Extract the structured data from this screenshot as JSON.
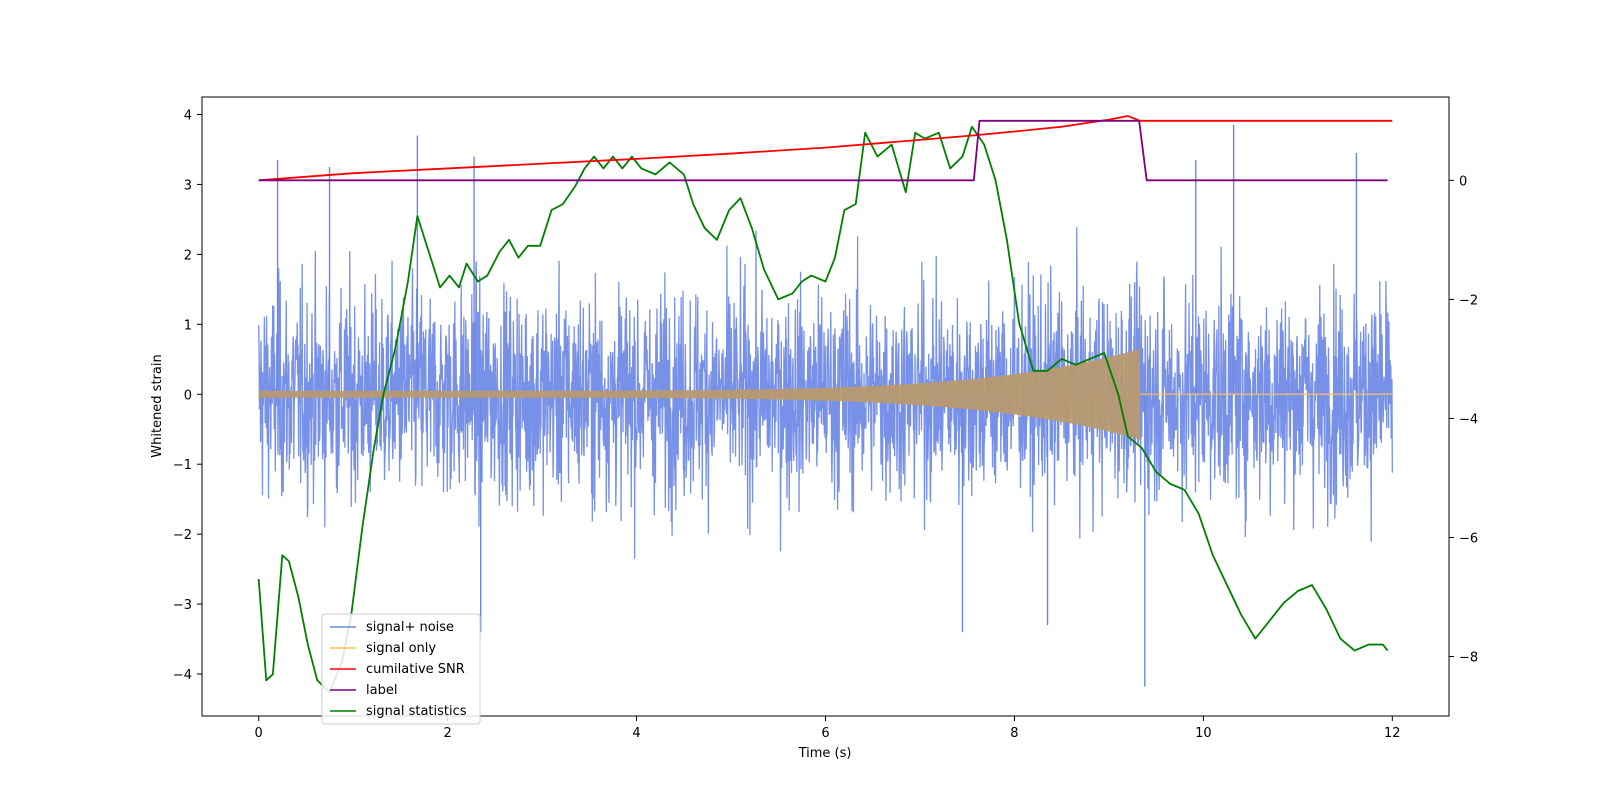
{
  "chart_data": {
    "type": "line",
    "xlabel": "Time (s)",
    "ylabel": "Whitened strain",
    "ylabel_right": "",
    "xlim": [
      -0.6,
      12.6
    ],
    "ylim": [
      -4.6,
      4.25
    ],
    "ylim_right": [
      -9.0,
      1.4
    ],
    "x_ticks": [
      0,
      2,
      4,
      6,
      8,
      10,
      12
    ],
    "y_ticks": [
      4,
      3,
      2,
      1,
      0,
      -1,
      -2,
      -3,
      -4
    ],
    "y_ticks_right": [
      0,
      -2,
      -4,
      -6,
      -8
    ],
    "x_tick_labels": [
      "0",
      "2",
      "4",
      "6",
      "8",
      "10",
      "12"
    ],
    "y_tick_labels": [
      "4",
      "3",
      "2",
      "1",
      "0",
      "−1",
      "−2",
      "−3",
      "−4"
    ],
    "y_tick_labels_right": [
      "0",
      "−2",
      "−4",
      "−6",
      "−8"
    ],
    "grid": false,
    "legend_position": "lower-left",
    "colors": {
      "noise": "#6b87e6",
      "signal": "#ffc04d",
      "snr": "#ff0000",
      "label": "#800080",
      "stats": "#008000"
    },
    "series": [
      {
        "name": "signal+ noise",
        "axis": "left",
        "description_values": "whitened noise, roughly uniform band with peaks near ±2.5 and spikes",
        "t_start": 0,
        "t_end": 12,
        "band_lower": -2.3,
        "band_upper": 2.3,
        "spikes": [
          {
            "x": 0.2,
            "y": 3.35
          },
          {
            "x": 0.75,
            "y": 3.25
          },
          {
            "x": 1.68,
            "y": 3.7
          },
          {
            "x": 2.28,
            "y": 3.4
          },
          {
            "x": 9.38,
            "y": -4.18
          },
          {
            "x": 9.92,
            "y": 3.35
          },
          {
            "x": 10.32,
            "y": 3.85
          },
          {
            "x": 11.62,
            "y": 3.45
          },
          {
            "x": 2.35,
            "y": -3.4
          },
          {
            "x": 7.45,
            "y": -3.4
          },
          {
            "x": 8.35,
            "y": -3.3
          }
        ]
      },
      {
        "name": "signal only",
        "axis": "left",
        "t_start": 0,
        "t_merger": 9.33,
        "amp_start": 0.05,
        "amp_peak": 0.65,
        "post_merger_value": 0.0
      },
      {
        "name": "cumilative SNR",
        "axis": "right",
        "x": [
          0,
          1,
          2,
          3,
          4,
          5,
          6,
          7,
          7.6,
          8,
          8.5,
          9,
          9.2,
          9.33,
          10,
          11,
          12
        ],
        "values": [
          0.0,
          0.12,
          0.2,
          0.28,
          0.36,
          0.45,
          0.55,
          0.68,
          0.76,
          0.82,
          0.9,
          1.02,
          1.08,
          1.0,
          1.0,
          1.0,
          1.0
        ]
      },
      {
        "name": "label",
        "axis": "right",
        "x": [
          0,
          7.57,
          7.63,
          9.32,
          9.4,
          11.95
        ],
        "values": [
          0,
          0,
          1,
          1,
          0,
          0
        ]
      },
      {
        "name": "signal statistics",
        "axis": "right",
        "x": [
          0.0,
          0.08,
          0.15,
          0.25,
          0.32,
          0.42,
          0.52,
          0.62,
          0.75,
          0.88,
          0.98,
          1.1,
          1.22,
          1.32,
          1.45,
          1.58,
          1.68,
          1.8,
          1.92,
          2.02,
          2.12,
          2.2,
          2.32,
          2.42,
          2.55,
          2.65,
          2.75,
          2.85,
          2.98,
          3.1,
          3.22,
          3.35,
          3.45,
          3.55,
          3.65,
          3.75,
          3.85,
          3.95,
          4.05,
          4.2,
          4.35,
          4.5,
          4.6,
          4.72,
          4.85,
          4.98,
          5.1,
          5.22,
          5.35,
          5.5,
          5.65,
          5.75,
          5.85,
          6.0,
          6.1,
          6.2,
          6.32,
          6.42,
          6.55,
          6.7,
          6.85,
          6.95,
          7.05,
          7.2,
          7.32,
          7.45,
          7.55,
          7.68,
          7.8,
          7.92,
          8.05,
          8.2,
          8.35,
          8.5,
          8.65,
          8.8,
          8.95,
          9.1,
          9.2,
          9.35,
          9.5,
          9.65,
          9.8,
          9.95,
          10.1,
          10.25,
          10.4,
          10.55,
          10.7,
          10.85,
          11.0,
          11.15,
          11.3,
          11.45,
          11.6,
          11.75,
          11.9,
          11.95
        ],
        "values": [
          -6.7,
          -8.4,
          -8.3,
          -6.3,
          -6.4,
          -7.0,
          -7.8,
          -8.4,
          -8.6,
          -8.1,
          -7.3,
          -5.8,
          -4.5,
          -3.6,
          -2.8,
          -1.7,
          -0.6,
          -1.2,
          -1.8,
          -1.6,
          -1.8,
          -1.4,
          -1.7,
          -1.6,
          -1.2,
          -1.0,
          -1.3,
          -1.1,
          -1.1,
          -0.5,
          -0.4,
          -0.1,
          0.2,
          0.4,
          0.2,
          0.4,
          0.2,
          0.4,
          0.2,
          0.1,
          0.3,
          0.1,
          -0.4,
          -0.8,
          -1.0,
          -0.5,
          -0.3,
          -0.8,
          -1.5,
          -2.0,
          -1.9,
          -1.7,
          -1.6,
          -1.7,
          -1.3,
          -0.5,
          -0.4,
          0.8,
          0.4,
          0.6,
          -0.2,
          0.8,
          0.7,
          0.8,
          0.2,
          0.4,
          0.9,
          0.6,
          0.0,
          -1.0,
          -2.4,
          -3.2,
          -3.2,
          -3.0,
          -3.1,
          -3.0,
          -2.9,
          -3.6,
          -4.3,
          -4.5,
          -4.9,
          -5.1,
          -5.2,
          -5.6,
          -6.3,
          -6.8,
          -7.3,
          -7.7,
          -7.4,
          -7.1,
          -6.9,
          -6.8,
          -7.2,
          -7.7,
          -7.9,
          -7.8,
          -7.8,
          -7.9
        ]
      }
    ],
    "legend": [
      "signal+ noise",
      "signal only",
      "cumilative SNR",
      "label",
      "signal statistics"
    ]
  }
}
